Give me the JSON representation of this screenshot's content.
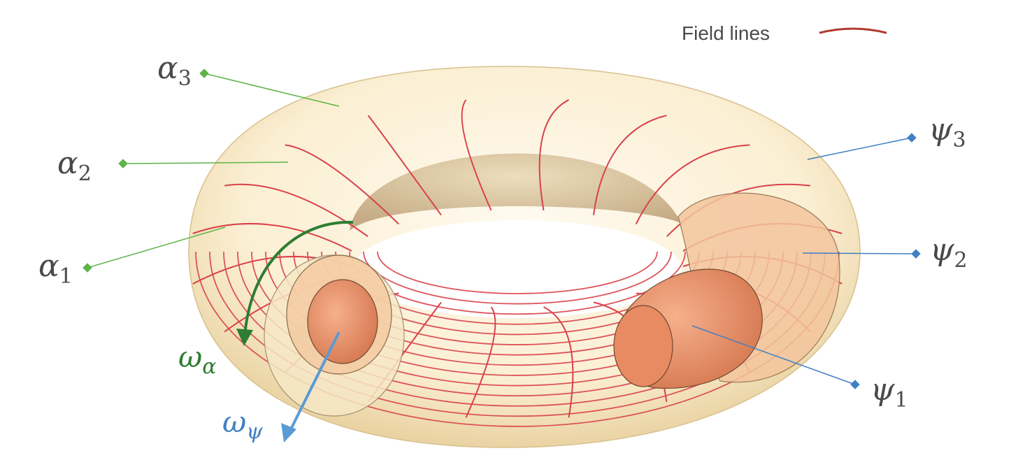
{
  "legend": {
    "label": "Field lines",
    "color": "#b0392e"
  },
  "labels": {
    "alpha1": {
      "sym": "α",
      "sub": "1"
    },
    "alpha2": {
      "sym": "α",
      "sub": "2"
    },
    "alpha3": {
      "sym": "α",
      "sub": "3"
    },
    "psi1": {
      "sym": "ψ",
      "sub": "1"
    },
    "psi2": {
      "sym": "ψ",
      "sub": "2"
    },
    "psi3": {
      "sym": "ψ",
      "sub": "3"
    },
    "omega_alpha": {
      "sym": "ω",
      "sub": "α"
    },
    "omega_psi": {
      "sym": "ω",
      "sub": "ψ"
    }
  },
  "colors": {
    "torus_fill": "#fbf0d6",
    "torus_shade": "#e8d3a6",
    "field_line": "#d9424a",
    "alpha_leader": "#5cb446",
    "psi_leader": "#3f7fc4",
    "omega_alpha": "#2e7d32",
    "omega_psi": "#5b9bd5",
    "label_text": "#4a4a4a",
    "inner_tube": "#ef9b74",
    "inner_tube_dark": "#d97a54"
  }
}
